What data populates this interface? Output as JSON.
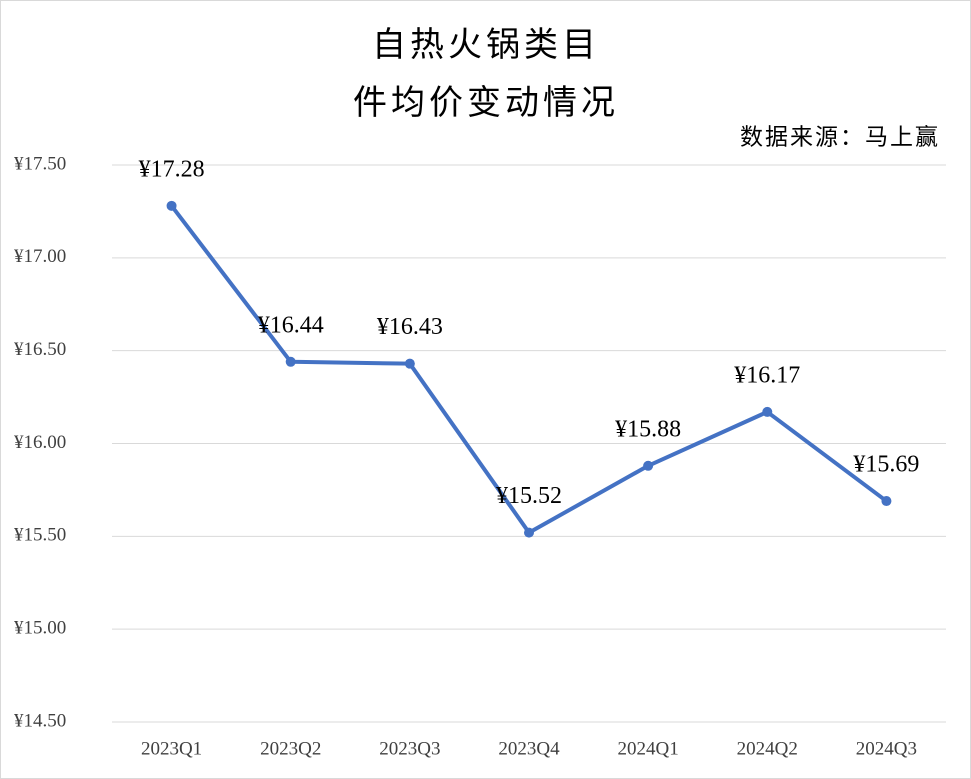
{
  "chart_data": {
    "type": "line",
    "title": "自热火锅类目",
    "subtitle": "件均价变动情况",
    "annotation": "数据来源：马上赢",
    "categories": [
      "2023Q1",
      "2023Q2",
      "2023Q3",
      "2023Q4",
      "2024Q1",
      "2024Q2",
      "2024Q3"
    ],
    "values": [
      17.28,
      16.44,
      16.43,
      15.52,
      15.88,
      16.17,
      15.69
    ],
    "value_labels": [
      "¥17.28",
      "¥16.44",
      "¥16.43",
      "¥15.52",
      "¥15.88",
      "¥16.17",
      "¥15.69"
    ],
    "color": "#4472c4",
    "ylim": [
      14.5,
      17.5
    ],
    "yticks": [
      {
        "value": 14.5,
        "label": "¥14.50"
      },
      {
        "value": 15,
        "label": "¥15.00"
      },
      {
        "value": 15.5,
        "label": "¥15.50"
      },
      {
        "value": 16,
        "label": "¥16.00"
      },
      {
        "value": 16.5,
        "label": "¥16.50"
      },
      {
        "value": 17,
        "label": "¥17.00"
      },
      {
        "value": 17.5,
        "label": "¥17.50"
      }
    ],
    "grid": true
  }
}
